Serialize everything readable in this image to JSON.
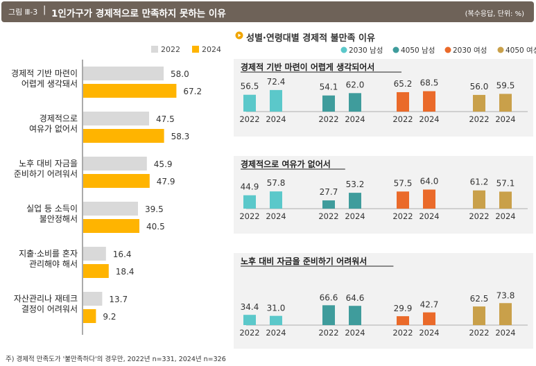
{
  "header": {
    "figure_label": "그림 Ⅲ-3",
    "separator": "|",
    "title": "1인가구가 경제적으로 만족하지 못하는 이유",
    "unit": "(복수응답, 단위: %)"
  },
  "footnote": "주) 경제적 만족도가 '불만족하다'의 경우만, 2022년 n=331, 2024년 n=326",
  "colors": {
    "header_bg": "#6e6258",
    "bar_2022": "#d9d9d9",
    "bar_2024": "#ffb400",
    "panel_bg": "#f2f2f2",
    "c2030m": "#5bc8ca",
    "c4050m": "#3f9c9c",
    "c2030f": "#ea6a2a",
    "c4050f": "#c9a04a"
  },
  "right_title": "성별·연령대별 경제적 불만족 이유",
  "chart_data": [
    {
      "type": "bar",
      "orientation": "horizontal",
      "categories": [
        "경제적 기반 마련이\n어렵게 생각돼서",
        "경제적으로\n여유가 없어서",
        "노후 대비 자금을\n준비하기 어려워서",
        "실업 등 소득이\n불안정해서",
        "지출·소비를 혼자\n관리해야 해서",
        "자산관리나 재테크\n결정이 어려워서"
      ],
      "series": [
        {
          "name": "2022",
          "values": [
            58.0,
            47.5,
            45.9,
            39.5,
            16.4,
            13.7
          ]
        },
        {
          "name": "2024",
          "values": [
            67.2,
            58.3,
            47.9,
            40.5,
            18.4,
            9.2
          ]
        }
      ],
      "legend": [
        "2022",
        "2024"
      ],
      "xlim": [
        0,
        100
      ]
    },
    {
      "type": "bar",
      "legend": [
        "2030 남성",
        "4050 남성",
        "2030 여성",
        "4050 여성"
      ],
      "groups": [
        "2030 남성",
        "4050 남성",
        "2030 여성",
        "4050 여성"
      ],
      "years": [
        "2022",
        "2024"
      ],
      "ylim": [
        0,
        100
      ],
      "panels": [
        {
          "title": "경제적 기반 마련이 어렵게 생각되어서",
          "values": [
            [
              56.5,
              72.4
            ],
            [
              54.1,
              62.0
            ],
            [
              65.2,
              68.5
            ],
            [
              56.0,
              59.5
            ]
          ]
        },
        {
          "title": "경제적으로 여유가 없어서",
          "values": [
            [
              44.9,
              57.8
            ],
            [
              27.7,
              53.2
            ],
            [
              57.5,
              64.0
            ],
            [
              61.2,
              57.1
            ]
          ]
        },
        {
          "title": "노후 대비 자금을 준비하기 어려워서",
          "values": [
            [
              34.4,
              31.0
            ],
            [
              66.6,
              64.6
            ],
            [
              29.9,
              42.7
            ],
            [
              62.5,
              73.8
            ]
          ]
        }
      ]
    }
  ]
}
